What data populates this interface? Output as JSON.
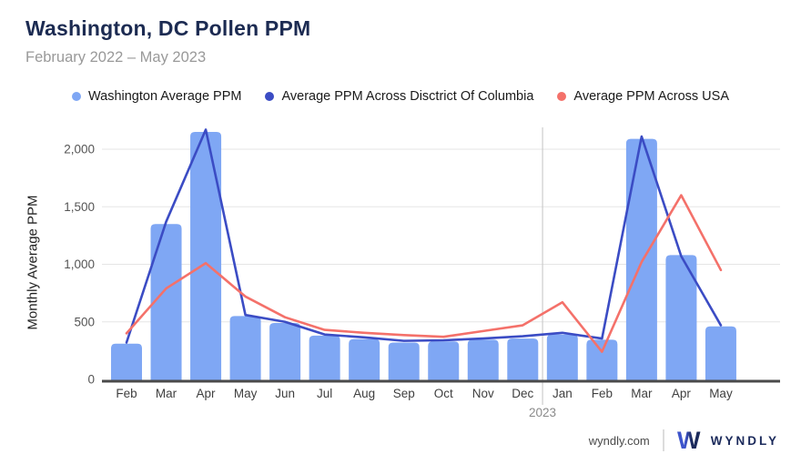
{
  "header": {
    "title": "Washington, DC Pollen PPM",
    "subtitle": "February 2022 – May 2023"
  },
  "chart_data": {
    "type": "bar",
    "title": "Washington, DC Pollen PPM",
    "categories": [
      "Feb",
      "Mar",
      "Apr",
      "May",
      "Jun",
      "Jul",
      "Aug",
      "Sep",
      "Oct",
      "Nov",
      "Dec",
      "Jan",
      "Feb",
      "Mar",
      "Apr",
      "May"
    ],
    "x_year_label": "2023",
    "year_divider_after_index": 10,
    "series": [
      {
        "name": "Washington Average PPM",
        "type": "bar",
        "color": "#7FA7F4",
        "values": [
          310,
          1350,
          2150,
          550,
          490,
          380,
          350,
          320,
          330,
          345,
          355,
          390,
          345,
          2090,
          1080,
          460
        ]
      },
      {
        "name": "Average PPM Across Disctrict Of Columbia",
        "type": "line",
        "color": "#3B4CC4",
        "values": [
          320,
          1370,
          2170,
          560,
          500,
          390,
          365,
          335,
          340,
          355,
          375,
          405,
          355,
          2110,
          1070,
          470
        ]
      },
      {
        "name": "Average PPM Across USA",
        "type": "line",
        "color": "#F4716A",
        "values": [
          400,
          790,
          1010,
          720,
          540,
          430,
          405,
          385,
          370,
          420,
          470,
          670,
          240,
          1020,
          1600,
          950
        ]
      }
    ],
    "xlabel": "",
    "ylabel": "Monthly Average PPM",
    "yticks": [
      0,
      500,
      1000,
      1500,
      2000
    ],
    "ytick_labels": [
      "0",
      "500",
      "1,000",
      "1,500",
      "2,000"
    ],
    "ylim": [
      0,
      2200
    ],
    "grid": true,
    "legend_position": "top"
  },
  "footer": {
    "site": "wyndly.com",
    "brand": "WYNDLY",
    "brand_color": "#1B2A5B",
    "logo_blue": "#3E55CC"
  }
}
